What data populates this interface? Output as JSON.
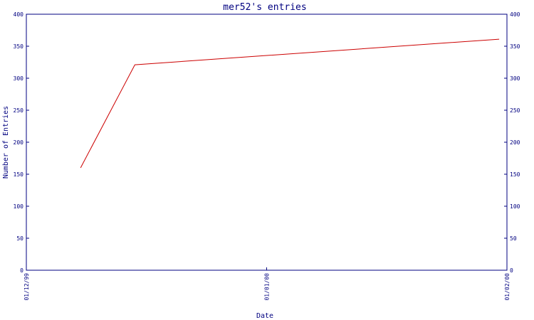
{
  "chart_data": {
    "type": "line",
    "title": "mer52's entries",
    "xlabel": "Date",
    "ylabel": "Number of Entries",
    "x_ticks": [
      "01/12/99",
      "01/01/00",
      "01/02/00"
    ],
    "x_tick_dates": [
      "1999-12-01",
      "2000-01-01",
      "2000-02-01"
    ],
    "ylim": [
      0,
      400
    ],
    "y_ticks": [
      0,
      50,
      100,
      150,
      200,
      250,
      300,
      350,
      400
    ],
    "grid": false,
    "legend": "none",
    "series": [
      {
        "color": "#cc0000",
        "x": [
          "1999-12-08",
          "1999-12-15",
          "2000-01-31"
        ],
        "y": [
          160,
          321,
          361
        ]
      }
    ]
  }
}
